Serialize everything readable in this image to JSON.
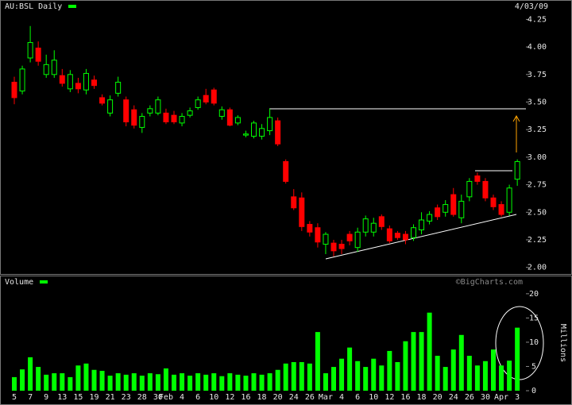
{
  "chart_data": [
    {
      "type": "candlestick",
      "title": "AU:BSL Daily",
      "subtitle": "4/03/09",
      "open": [
        3.68,
        3.6,
        3.9,
        3.99,
        3.75,
        3.75,
        3.74,
        3.62,
        3.67,
        3.61,
        3.7,
        3.54,
        3.4,
        3.58,
        3.52,
        3.43,
        3.27,
        3.4,
        3.4,
        3.4,
        3.38,
        3.31,
        3.38,
        3.45,
        3.56,
        3.61,
        3.37,
        3.43,
        3.31,
        3.2,
        3.19,
        3.19,
        3.24,
        3.33,
        2.96,
        2.64,
        2.63,
        2.39,
        2.36,
        2.21,
        2.22,
        2.21,
        2.3,
        2.18,
        2.32,
        2.32,
        2.46,
        2.35,
        2.31,
        2.3,
        2.27,
        2.34,
        2.42,
        2.54,
        2.5,
        2.66,
        2.45,
        2.64,
        2.83,
        2.78,
        2.63,
        2.57,
        2.5,
        2.8
      ],
      "high": [
        3.73,
        3.83,
        4.19,
        4.05,
        3.93,
        3.97,
        3.8,
        3.79,
        3.72,
        3.8,
        3.74,
        3.57,
        3.56,
        3.73,
        3.55,
        3.47,
        3.4,
        3.47,
        3.55,
        3.44,
        3.42,
        3.4,
        3.45,
        3.55,
        3.62,
        3.63,
        3.46,
        3.45,
        3.38,
        3.24,
        3.33,
        3.3,
        3.44,
        3.36,
        2.98,
        2.71,
        2.68,
        2.42,
        2.4,
        2.32,
        2.25,
        2.25,
        2.33,
        2.36,
        2.47,
        2.45,
        2.48,
        2.38,
        2.33,
        2.33,
        2.39,
        2.5,
        2.51,
        2.57,
        2.61,
        2.72,
        2.66,
        2.81,
        2.86,
        2.81,
        2.66,
        2.6,
        2.75,
        2.98
      ],
      "low": [
        3.48,
        3.57,
        3.86,
        3.83,
        3.72,
        3.72,
        3.64,
        3.59,
        3.58,
        3.57,
        3.62,
        3.47,
        3.37,
        3.55,
        3.28,
        3.26,
        3.22,
        3.37,
        3.38,
        3.3,
        3.3,
        3.28,
        3.36,
        3.43,
        3.48,
        3.47,
        3.34,
        3.28,
        3.29,
        3.18,
        3.17,
        3.16,
        3.2,
        3.1,
        2.76,
        2.52,
        2.33,
        2.28,
        2.18,
        2.12,
        2.1,
        2.12,
        2.2,
        2.14,
        2.28,
        2.28,
        2.34,
        2.22,
        2.25,
        2.21,
        2.24,
        2.3,
        2.39,
        2.43,
        2.46,
        2.46,
        2.4,
        2.6,
        2.75,
        2.6,
        2.52,
        2.46,
        2.47,
        2.74
      ],
      "close": [
        3.54,
        3.8,
        4.04,
        3.87,
        3.84,
        3.88,
        3.67,
        3.75,
        3.62,
        3.76,
        3.65,
        3.49,
        3.52,
        3.68,
        3.32,
        3.29,
        3.37,
        3.44,
        3.52,
        3.32,
        3.32,
        3.37,
        3.42,
        3.52,
        3.5,
        3.49,
        3.43,
        3.29,
        3.36,
        3.21,
        3.31,
        3.26,
        3.36,
        3.12,
        2.78,
        2.54,
        2.37,
        2.32,
        2.23,
        2.3,
        2.15,
        2.17,
        2.24,
        2.32,
        2.44,
        2.4,
        2.37,
        2.24,
        2.27,
        2.25,
        2.36,
        2.43,
        2.48,
        2.46,
        2.57,
        2.48,
        2.6,
        2.78,
        2.78,
        2.63,
        2.55,
        2.48,
        2.72,
        2.96
      ],
      "up_color": "#00ff00",
      "down_color": "#ff0000",
      "ylim": [
        1.94,
        4.39
      ],
      "yticks": [
        {
          "value": 2,
          "label": "2.00"
        },
        {
          "value": 2.25,
          "label": "2.25"
        },
        {
          "value": 2.5,
          "label": "2.50"
        },
        {
          "value": 2.75,
          "label": "2.75"
        },
        {
          "value": 3,
          "label": "3.00"
        },
        {
          "value": 3.25,
          "label": "3.25"
        },
        {
          "value": 3.5,
          "label": "3.50"
        },
        {
          "value": 3.75,
          "label": "3.75"
        },
        {
          "value": 4,
          "label": "4.00"
        },
        {
          "value": 4.25,
          "label": "4.25"
        }
      ]
    },
    {
      "type": "bar",
      "title": "Volume",
      "y_label": "Millions",
      "watermark": "©BigCharts.com",
      "categories": [
        "5",
        null,
        "7",
        null,
        "9",
        null,
        "13",
        null,
        "15",
        null,
        "19",
        null,
        "21",
        null,
        "23",
        null,
        "28",
        null,
        "30",
        "Feb",
        null,
        "4",
        null,
        "6",
        null,
        "10",
        null,
        "12",
        null,
        "16",
        null,
        "18",
        null,
        "20",
        null,
        "24",
        null,
        "26",
        null,
        "Mar",
        null,
        "4",
        null,
        "6",
        null,
        "10",
        null,
        "12",
        null,
        "16",
        null,
        "18",
        null,
        "20",
        null,
        "24",
        null,
        "26",
        null,
        "30",
        null,
        "Apr",
        null,
        "3"
      ],
      "values": [
        2.8,
        4.4,
        6.9,
        4.9,
        3.3,
        3.6,
        3.6,
        2.8,
        5.2,
        5.6,
        4.3,
        4.1,
        3.1,
        3.6,
        3.3,
        3.6,
        3.1,
        3.6,
        3.4,
        4.6,
        3.3,
        3.6,
        3.1,
        3.6,
        3.3,
        3.6,
        3.0,
        3.6,
        3.3,
        3.1,
        3.6,
        3.3,
        3.6,
        4.3,
        5.6,
        5.9,
        5.9,
        5.6,
        12.1,
        3.6,
        4.9,
        6.6,
        8.9,
        6.1,
        4.9,
        6.6,
        5.2,
        8.2,
        5.9,
        10.2,
        12.1,
        12.1,
        16.1,
        7.2,
        4.9,
        8.5,
        11.5,
        7.2,
        5.2,
        6.1,
        8.5,
        5.2,
        6.2,
        13.0
      ],
      "color": "#00ff00",
      "ylim": [
        0,
        20.8
      ],
      "yticks": [
        0,
        5,
        10,
        15,
        20
      ]
    }
  ]
}
